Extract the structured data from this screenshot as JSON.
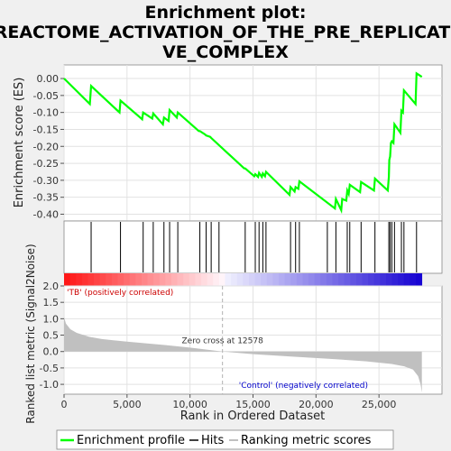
{
  "chart_data": {
    "type": "line",
    "title_lines": [
      "Enrichment plot:",
      "REACTOME_ACTIVATION_OF_THE_PRE_REPLICATI",
      "VE_COMPLEX"
    ],
    "es_panel": {
      "ylabel": "Enrichment score (ES)",
      "ylim": [
        -0.42,
        0.04
      ],
      "yticks": [
        "0.00",
        "-0.05",
        "-0.10",
        "-0.15",
        "-0.20",
        "-0.25",
        "-0.30",
        "-0.35",
        "-0.40"
      ],
      "ytick_values": [
        0,
        -0.05,
        -0.1,
        -0.15,
        -0.2,
        -0.25,
        -0.3,
        -0.35,
        -0.4
      ],
      "grid": true,
      "line_color": "#00ff00",
      "es_curve": {
        "x": [
          0,
          2050,
          2150,
          4400,
          4480,
          6200,
          6280,
          7000,
          7080,
          7850,
          7930,
          8300,
          8380,
          8950,
          9030,
          10700,
          10780,
          11200,
          11280,
          11600,
          11680,
          14300,
          14380,
          15100,
          15180,
          15400,
          15480,
          15700,
          15780,
          15950,
          16030,
          17900,
          17980,
          18300,
          18380,
          18600,
          18680,
          21500,
          21580,
          22000,
          22080,
          22400,
          22480,
          22600,
          22680,
          23500,
          23580,
          24600,
          24680,
          25700,
          25780,
          25820,
          25880,
          25950,
          26020,
          26150,
          26230,
          26700,
          26780,
          26900,
          26980,
          27900,
          27980,
          28400
        ],
        "y": [
          0,
          -0.075,
          -0.022,
          -0.1,
          -0.065,
          -0.12,
          -0.1,
          -0.118,
          -0.103,
          -0.135,
          -0.115,
          -0.125,
          -0.093,
          -0.115,
          -0.1,
          -0.155,
          -0.155,
          -0.165,
          -0.168,
          -0.172,
          -0.175,
          -0.265,
          -0.265,
          -0.288,
          -0.282,
          -0.29,
          -0.278,
          -0.29,
          -0.28,
          -0.288,
          -0.275,
          -0.343,
          -0.32,
          -0.333,
          -0.32,
          -0.325,
          -0.303,
          -0.383,
          -0.355,
          -0.388,
          -0.355,
          -0.36,
          -0.33,
          -0.34,
          -0.313,
          -0.335,
          -0.305,
          -0.33,
          -0.295,
          -0.33,
          -0.29,
          -0.24,
          -0.23,
          -0.19,
          -0.185,
          -0.19,
          -0.135,
          -0.16,
          -0.095,
          -0.1,
          -0.035,
          -0.075,
          0.015,
          0.005
        ]
      }
    },
    "hits_panel": {
      "hit_positions": [
        2150,
        4480,
        6280,
        7080,
        7930,
        8380,
        9030,
        10780,
        11280,
        11680,
        12300,
        14380,
        15180,
        15480,
        15780,
        16030,
        17980,
        18380,
        18680,
        20900,
        21580,
        22480,
        22680,
        23580,
        24680,
        25780,
        25880,
        26020,
        26230,
        26780,
        26980,
        27980
      ]
    },
    "rank_bar": {
      "label_left": "'TB' (positively correlated)",
      "label_right": "'Control' (negatively correlated)"
    },
    "metric_panel": {
      "ylabel": "Ranked list metric (Signal2Noise)",
      "xlabel": "Rank in Ordered Dataset",
      "ylim": [
        -1.3,
        2.0
      ],
      "yticks": [
        "2.0",
        "1.5",
        "1.0",
        "0.5",
        "0.0",
        "-0.5",
        "-1.0"
      ],
      "ytick_values": [
        2.0,
        1.5,
        1.0,
        0.5,
        0.0,
        -0.5,
        -1.0
      ],
      "xlim": [
        0,
        30000
      ],
      "xticks": [
        "0",
        "5,000",
        "10,000",
        "15,000",
        "20,000",
        "25,000"
      ],
      "xtick_values": [
        0,
        5000,
        10000,
        15000,
        20000,
        25000
      ],
      "zero_cross_label": "Zero cross at 12578",
      "zero_cross": 12578,
      "fill_color": "#c0c0c0",
      "metric_curve": {
        "x": [
          0,
          150,
          500,
          1000,
          2000,
          3000,
          5000,
          8000,
          10000,
          12578,
          15000,
          18000,
          21000,
          24000,
          26000,
          27000,
          27700,
          28100,
          28300,
          28400
        ],
        "y": [
          1.05,
          0.85,
          0.68,
          0.57,
          0.45,
          0.38,
          0.3,
          0.2,
          0.12,
          0.0,
          -0.08,
          -0.15,
          -0.22,
          -0.3,
          -0.38,
          -0.45,
          -0.55,
          -0.75,
          -1.0,
          -1.25
        ]
      }
    },
    "legend": {
      "items": [
        {
          "label": "Enrichment profile",
          "color": "#00ff00"
        },
        {
          "label": "Hits",
          "color": "#000000"
        },
        {
          "label": "Ranking metric scores",
          "color": "#c0c0c0"
        }
      ]
    }
  }
}
